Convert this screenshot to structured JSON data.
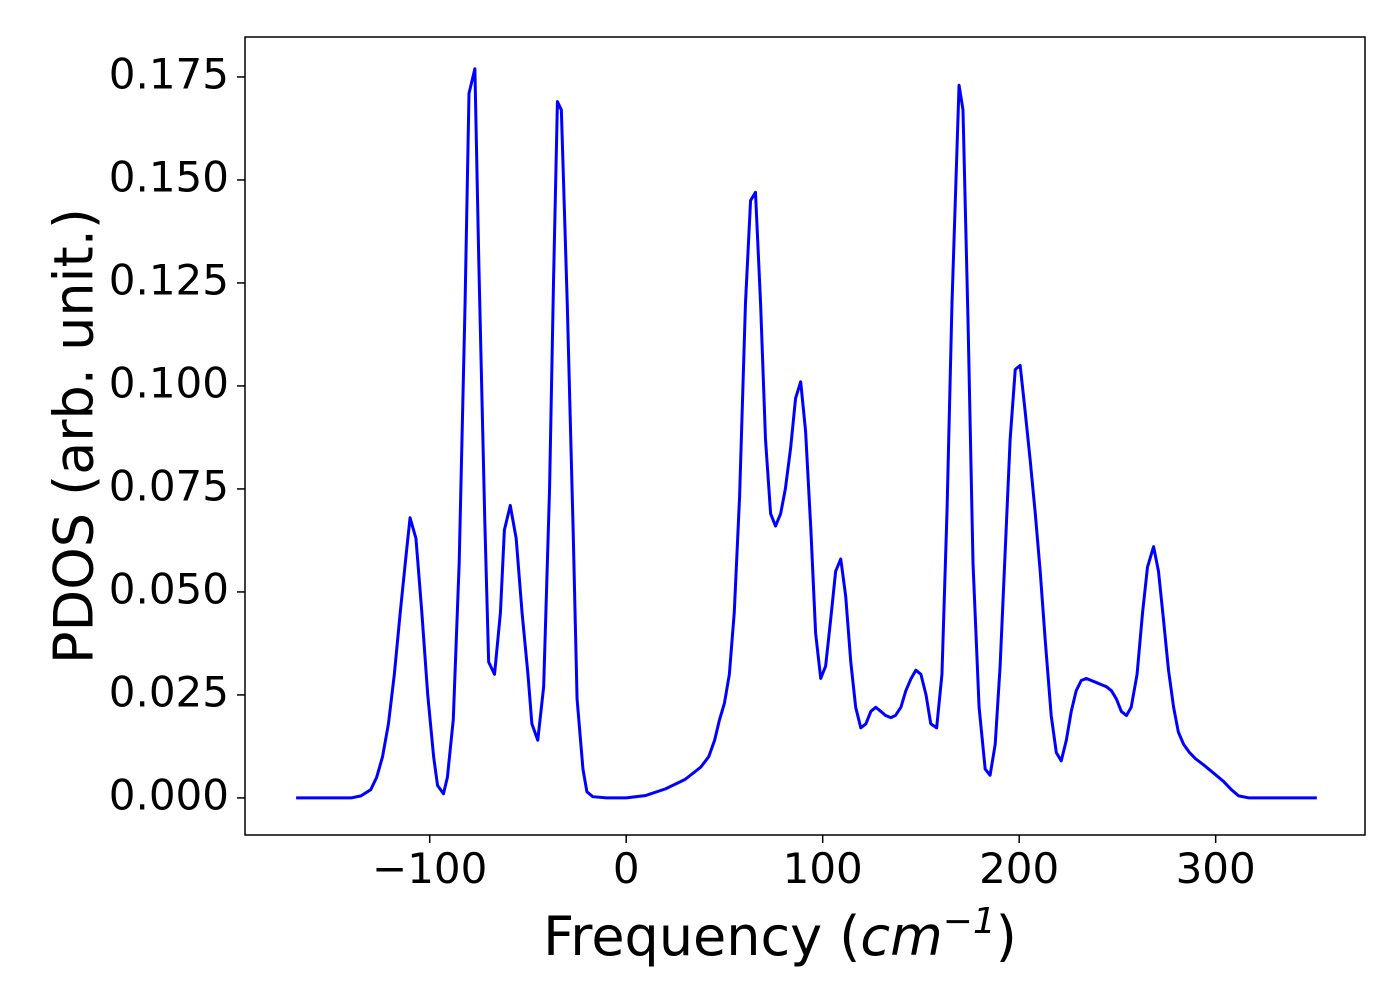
{
  "chart_data": {
    "type": "line",
    "xlabel": [
      "Frequency (",
      "cm",
      "−1",
      ")"
    ],
    "ylabel": "PDOS (arb. unit.)",
    "color": "#0000ff",
    "xlim": [
      -194,
      376
    ],
    "ylim": [
      -0.009,
      0.1847
    ],
    "xticks": [
      {
        "value": -100,
        "label": "−100"
      },
      0,
      100,
      200,
      300
    ],
    "yticks": [
      {
        "value": 0,
        "label": "0.000"
      },
      {
        "value": 0.025,
        "label": "0.025"
      },
      {
        "value": 0.05,
        "label": "0.050"
      },
      {
        "value": 0.075,
        "label": "0.075"
      },
      {
        "value": 0.1,
        "label": "0.100"
      },
      {
        "value": 0.125,
        "label": "0.125"
      },
      {
        "value": 0.15,
        "label": "0.150"
      },
      {
        "value": 0.175,
        "label": "0.175"
      }
    ],
    "x": [
      -168,
      -140,
      -135,
      -130,
      -127,
      -124,
      -121,
      -118,
      -115,
      -112,
      -110,
      -107,
      -104,
      -101,
      -98,
      -96,
      -93,
      -91,
      -88,
      -85,
      -82,
      -80,
      -77,
      -75,
      -72,
      -70,
      -67,
      -64,
      -62,
      -59,
      -56,
      -53,
      -50,
      -48,
      -45,
      -42,
      -39,
      -37,
      -35,
      -33,
      -30,
      -27,
      -25,
      -22,
      -20,
      -17,
      -10,
      0,
      10,
      20,
      30,
      38,
      42,
      45,
      47.5,
      50,
      52.5,
      55,
      57.7,
      60.7,
      63.3,
      65.8,
      68.4,
      70.9,
      73.5,
      76,
      78.6,
      81,
      83.7,
      86.2,
      88.8,
      91.3,
      94,
      96.4,
      99,
      101.5,
      104,
      106.6,
      109.2,
      111.7,
      114.3,
      116.8,
      119.4,
      122,
      124.5,
      127,
      129.6,
      132,
      134.7,
      137,
      139.8,
      142.3,
      145,
      147.4,
      150,
      152.6,
      155,
      158,
      160.7,
      163.3,
      165.8,
      169.4,
      171.4,
      174,
      176.5,
      179.6,
      182.7,
      185.2,
      187.8,
      190.3,
      192.9,
      195.4,
      198,
      200.5,
      203,
      205.6,
      208.2,
      210.7,
      213.3,
      216.3,
      218.9,
      221.4,
      224,
      226.5,
      229,
      231.6,
      234.2,
      236.7,
      239.3,
      241.8,
      244.4,
      247,
      249.5,
      252,
      254.6,
      257,
      260,
      262.8,
      265.3,
      268.4,
      270.9,
      273.5,
      276,
      278.6,
      281,
      283.7,
      286.7,
      289.8,
      293.9,
      299,
      304,
      308,
      311.7,
      317,
      351.5
    ],
    "values": [
      0,
      0,
      0.0005,
      0.002,
      0.005,
      0.01,
      0.018,
      0.03,
      0.045,
      0.059,
      0.068,
      0.063,
      0.045,
      0.025,
      0.01,
      0.003,
      0.001,
      0.005,
      0.019,
      0.057,
      0.12,
      0.171,
      0.177,
      0.13,
      0.068,
      0.033,
      0.03,
      0.045,
      0.065,
      0.071,
      0.063,
      0.045,
      0.03,
      0.018,
      0.014,
      0.027,
      0.075,
      0.125,
      0.169,
      0.167,
      0.12,
      0.065,
      0.024,
      0.007,
      0.0015,
      0.0003,
      0,
      0,
      0.0006,
      0.0022,
      0.0045,
      0.0075,
      0.01,
      0.014,
      0.019,
      0.023,
      0.03,
      0.045,
      0.073,
      0.12,
      0.145,
      0.147,
      0.12,
      0.087,
      0.069,
      0.066,
      0.069,
      0.075,
      0.085,
      0.097,
      0.101,
      0.089,
      0.065,
      0.04,
      0.029,
      0.032,
      0.043,
      0.055,
      0.058,
      0.049,
      0.033,
      0.022,
      0.017,
      0.018,
      0.021,
      0.022,
      0.021,
      0.02,
      0.0195,
      0.02,
      0.022,
      0.026,
      0.029,
      0.031,
      0.03,
      0.025,
      0.018,
      0.017,
      0.03,
      0.07,
      0.12,
      0.173,
      0.167,
      0.115,
      0.057,
      0.022,
      0.007,
      0.0055,
      0.013,
      0.032,
      0.06,
      0.087,
      0.104,
      0.105,
      0.094,
      0.082,
      0.069,
      0.055,
      0.038,
      0.02,
      0.011,
      0.009,
      0.014,
      0.021,
      0.026,
      0.0285,
      0.029,
      0.0285,
      0.028,
      0.0275,
      0.027,
      0.026,
      0.024,
      0.021,
      0.02,
      0.022,
      0.03,
      0.045,
      0.056,
      0.061,
      0.055,
      0.043,
      0.031,
      0.022,
      0.016,
      0.013,
      0.011,
      0.0095,
      0.008,
      0.006,
      0.004,
      0.002,
      0.0005,
      0,
      0
    ]
  }
}
